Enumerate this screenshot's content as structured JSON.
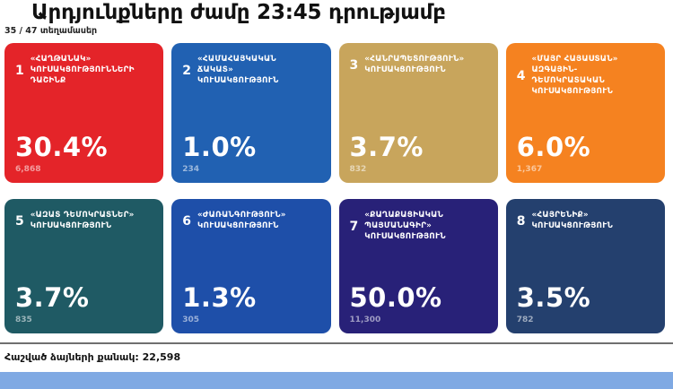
{
  "page": {
    "title": "Արդյունքները ժամը 23:45 դրությամբ",
    "subtitle": "35 / 47 տեղամասեր",
    "footer_label": "Հաշված ձայների քանակ: 22,598"
  },
  "colors": {
    "bottom_bar": "#7fa9e3",
    "divider": "#6f6f6f",
    "text": "#111111"
  },
  "cards": [
    {
      "number": "1",
      "name": "«ՀԱՂԹԱՆԱԿ» ԿՈՒՍԱԿՑՈՒԹՅՈՒՆՆԵՐԻ ԴԱՇԻՆՔ",
      "percent": "30.4%",
      "votes": "6,868",
      "color": "#e42429"
    },
    {
      "number": "2",
      "name": "«ՀԱՄԱՀԱՅԿԱԿԱՆ ՃԱԿԱՏ» ԿՈՒՍԱԿՑՈՒԹՅՈՒՆ",
      "percent": "1.0%",
      "votes": "234",
      "color": "#2161b2"
    },
    {
      "number": "3",
      "name": "«ՀԱՆՐԱՊԵՏՈՒԹՅՈՒՆ» ԿՈՒՍԱԿՑՈՒԹՅՈՒՆ",
      "percent": "3.7%",
      "votes": "832",
      "color": "#c8a55c"
    },
    {
      "number": "4",
      "name": "«ՄԱՅՐ ՀԱՅԱՍՏԱՆ» ԱԶԳԱՅԻՆ-ԴԵՄՈԿՐԱՏԱԿԱՆ ԿՈՒՍԱԿՑՈՒԹՅՈՒՆ",
      "percent": "6.0%",
      "votes": "1,367",
      "color": "#f58220"
    },
    {
      "number": "5",
      "name": "«ԱԶԱՏ ԴԵՄՈԿՐԱՏՆԵՐ» ԿՈՒՍԱԿՑՈՒԹՅՈՒՆ",
      "percent": "3.7%",
      "votes": "835",
      "color": "#1f5a64"
    },
    {
      "number": "6",
      "name": "«ԺԱՌԱՆԳՈՒԹՅՈՒՆ» ԿՈՒՍԱԿՑՈՒԹՅՈՒՆ",
      "percent": "1.3%",
      "votes": "305",
      "color": "#1e4fa9"
    },
    {
      "number": "7",
      "name": "«ՔԱՂԱՔԱՑԻԱԿԱՆ ՊԱՅՄԱՆԱԳԻՐ» ԿՈՒՍԱԿՑՈՒԹՅՈՒՆ",
      "percent": "50.0%",
      "votes": "11,300",
      "color": "#282178"
    },
    {
      "number": "8",
      "name": "«ՀԱՅՐԵՆԻՔ» ԿՈՒՍԱԿՑՈՒԹՅՈՒՆ",
      "percent": "3.5%",
      "votes": "782",
      "color": "#24406e"
    }
  ],
  "chart_data": {
    "type": "table",
    "title": "Արդյունքները ժամը 23:45 դրությամբ",
    "subtitle": "35 / 47 տեղամասեր",
    "categories": [
      "«ՀԱՂԹԱՆԱԿ» ԿՈՒՍԱԿՑՈՒԹՅՈՒՆՆԵՐԻ ԴԱՇԻՆՔ",
      "«ՀԱՄԱՀԱՅԿԱԿԱՆ ՃԱԿԱՏ» ԿՈՒՍԱԿՑՈՒԹՅՈՒՆ",
      "«ՀԱՆՐԱՊԵՏՈՒԹՅՈՒՆ» ԿՈՒՍԱԿՑՈՒԹՅՈՒՆ",
      "«ՄԱՅՐ ՀԱՅԱՍՏԱՆ» ԱԶԳԱՅԻՆ-ԴԵՄՈԿՐԱՏԱԿԱՆ ԿՈՒՍԱԿՑՈՒԹՅՈՒՆ",
      "«ԱԶԱՏ ԴԵՄՈԿՐԱՏՆԵՐ» ԿՈՒՍԱԿՑՈՒԹՅՈՒՆ",
      "«ԺԱՌԱՆԳՈՒԹՅՈՒՆ» ԿՈՒՍԱԿՑՈՒԹՅՈՒՆ",
      "«ՔԱՂԱՔԱՑԻԱԿԱՆ ՊԱՅՄԱՆԱԳԻՐ» ԿՈՒՍԱԿՑՈՒԹՅՈՒՆ",
      "«ՀԱՅՐԵՆԻՔ» ԿՈՒՍԱԿՑՈՒԹՅՈՒՆ"
    ],
    "series": [
      {
        "name": "percent",
        "values": [
          30.4,
          1.0,
          3.7,
          6.0,
          3.7,
          1.3,
          50.0,
          3.5
        ]
      },
      {
        "name": "votes",
        "values": [
          6868,
          234,
          832,
          1367,
          835,
          305,
          11300,
          782
        ]
      }
    ],
    "precincts_counted": "35 / 47",
    "total_votes": 22598
  }
}
